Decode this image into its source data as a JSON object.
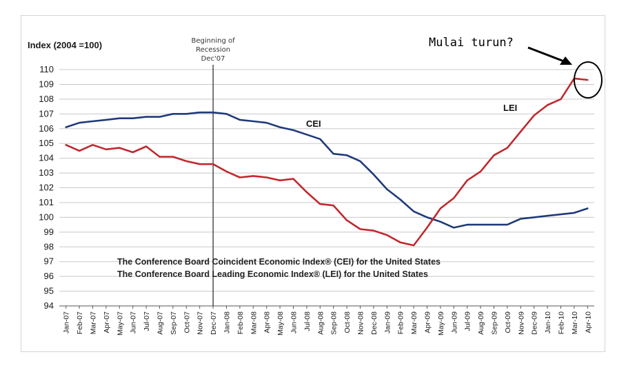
{
  "chart_data": {
    "type": "line",
    "ylabel": "Index (2004 =100)",
    "ylim": [
      94,
      110
    ],
    "yticks": [
      "94",
      "95",
      "96",
      "97",
      "98",
      "99",
      "100",
      "101",
      "102",
      "103",
      "104",
      "105",
      "106",
      "107",
      "108",
      "109",
      "110"
    ],
    "grid": "horizontal",
    "categories": [
      "Jan-07",
      "Feb-07",
      "Mar-07",
      "Apr-07",
      "May-07",
      "Jun-07",
      "Jul-07",
      "Aug-07",
      "Sep-07",
      "Oct-07",
      "Nov-07",
      "Dec-07",
      "Jan-08",
      "Feb-08",
      "Mar-08",
      "Apr-08",
      "May-08",
      "Jun-08",
      "Jul-08",
      "Aug-08",
      "Sep-08",
      "Oct-08",
      "Nov-08",
      "Dec-08",
      "Jan-09",
      "Feb-09",
      "Mar-09",
      "Apr-09",
      "May-09",
      "Jun-09",
      "Jul-09",
      "Aug-09",
      "Sep-09",
      "Oct-09",
      "Nov-09",
      "Dec-09",
      "Jan-10",
      "Feb-10",
      "Mar-10",
      "Apr-10"
    ],
    "series": [
      {
        "name": "CEI",
        "color": "#1f3a7a",
        "values": [
          106.1,
          106.4,
          106.5,
          106.6,
          106.7,
          106.7,
          106.8,
          106.8,
          107.0,
          107.0,
          107.1,
          107.1,
          107.0,
          106.6,
          106.5,
          106.4,
          106.1,
          105.9,
          105.6,
          105.3,
          104.3,
          104.2,
          103.8,
          102.9,
          101.9,
          101.2,
          100.4,
          100.0,
          99.7,
          99.3,
          99.5,
          99.5,
          99.5,
          99.5,
          99.9,
          100.0,
          100.1,
          100.2,
          100.3,
          100.6
        ]
      },
      {
        "name": "LEI",
        "color": "#c0282d",
        "values": [
          104.9,
          104.5,
          104.9,
          104.6,
          104.7,
          104.4,
          104.8,
          104.1,
          104.1,
          103.8,
          103.6,
          103.6,
          103.1,
          102.7,
          102.8,
          102.7,
          102.5,
          102.6,
          101.7,
          100.9,
          100.8,
          99.8,
          99.2,
          99.1,
          98.8,
          98.3,
          98.1,
          99.3,
          100.6,
          101.3,
          102.5,
          103.1,
          104.2,
          104.7,
          105.8,
          106.9,
          107.6,
          108.0,
          109.4,
          109.3
        ]
      }
    ],
    "series_labels": [
      "CEI",
      "LEI"
    ],
    "recession_marker": {
      "category": "Dec-07",
      "label_lines": [
        "Beginning of",
        "Recession",
        "Dec'07"
      ]
    },
    "annotations": [
      "The Conference Board Coincident Economic Index® (CEI) for the United States",
      "The Conference Board Leading Economic Index® (LEI) for the United States"
    ],
    "callout": "Mulai turun?"
  }
}
